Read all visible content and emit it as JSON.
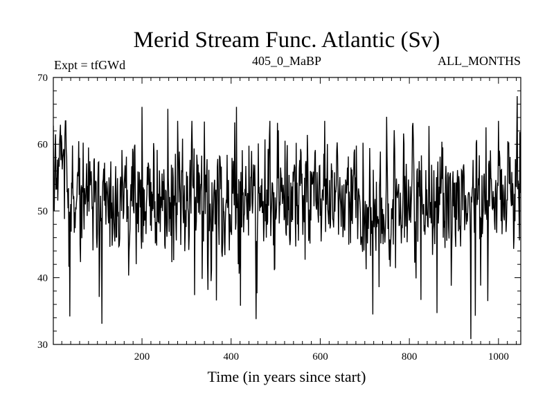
{
  "chart_data": {
    "type": "line",
    "title": "Merid Stream Func. Atlantic (Sv)",
    "subtitle_left": "Expt = tfGWd",
    "subtitle_center": "405_0_MaBP",
    "subtitle_right": "ALL_MONTHS",
    "xlabel": "Time (in years since start)",
    "ylabel": "",
    "xlim": [
      1,
      1050
    ],
    "ylim": [
      30,
      70
    ],
    "xticks_major": [
      200,
      400,
      600,
      800,
      1000
    ],
    "yticks_major": [
      30,
      40,
      50,
      60,
      70
    ],
    "x_minor_step": 20,
    "y_minor_step": 2,
    "series": [
      {
        "name": "Merid Stream Func. Atlantic",
        "color": "#000000",
        "generator": {
          "n": 1050,
          "seed": 405,
          "mean": 52.0,
          "std": 5.0
        },
        "anchors": [
          {
            "x": 38,
            "y": 34.2
          },
          {
            "x": 110,
            "y": 33.1
          },
          {
            "x": 200,
            "y": 65.6
          },
          {
            "x": 258,
            "y": 65.3
          },
          {
            "x": 318,
            "y": 37.4
          },
          {
            "x": 412,
            "y": 65.6
          },
          {
            "x": 421,
            "y": 35.8
          },
          {
            "x": 456,
            "y": 33.8
          },
          {
            "x": 718,
            "y": 34.5
          },
          {
            "x": 749,
            "y": 64.1
          },
          {
            "x": 862,
            "y": 34.7
          },
          {
            "x": 938,
            "y": 30.8
          },
          {
            "x": 948,
            "y": 34.3
          },
          {
            "x": 1042,
            "y": 67.2
          },
          {
            "x": 1047,
            "y": 45.6
          }
        ]
      }
    ]
  }
}
